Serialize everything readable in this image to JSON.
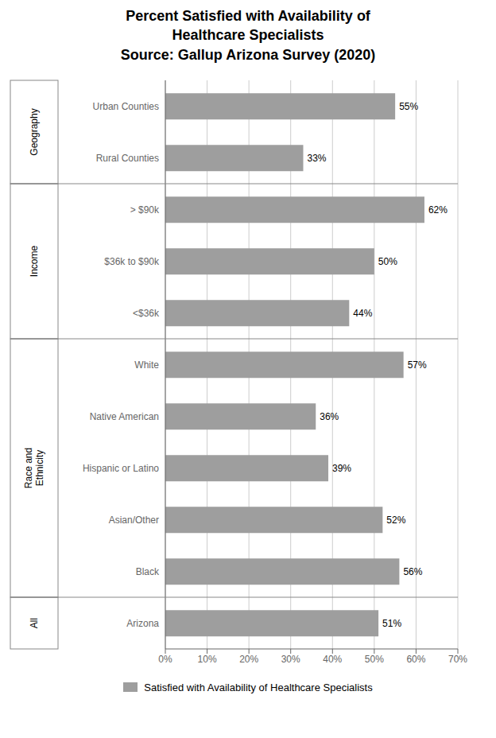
{
  "chart_data": {
    "type": "bar",
    "orientation": "horizontal",
    "title": "Percent Satisfied with Availability of\nHealthcare Specialists\nSource: Gallup Arizona Survey (2020)",
    "categories": [
      "Arizona",
      "Black",
      "Asian/Other",
      "Hispanic or Latino",
      "Native American",
      "White",
      "<$36k",
      "$36k to $90k",
      "> $90k",
      "Rural Counties",
      "Urban Counties"
    ],
    "series": [
      {
        "name": "Satisfied with Availability of Healthcare Specialists",
        "color": "#9e9e9e",
        "values": [
          51,
          56,
          52,
          39,
          36,
          57,
          44,
          50,
          62,
          33,
          55
        ],
        "value_labels": [
          "51%",
          "56%",
          "52%",
          "39%",
          "36%",
          "57%",
          "44%",
          "50%",
          "62%",
          "33%",
          "55%"
        ]
      }
    ],
    "groups": [
      {
        "label": "All",
        "categories": [
          "Arizona"
        ]
      },
      {
        "label": "Race and\nEthnicity",
        "categories": [
          "Black",
          "Asian/Other",
          "Hispanic or Latino",
          "Native American",
          "White"
        ]
      },
      {
        "label": "Income",
        "categories": [
          "<$36k",
          "$36k to $90k",
          "> $90k"
        ]
      },
      {
        "label": "Geography",
        "categories": [
          "Rural Counties",
          "Urban Counties"
        ]
      }
    ],
    "xlim": [
      0,
      70
    ],
    "xticks": [
      {
        "value": 0,
        "label": "0%"
      },
      {
        "value": 10,
        "label": "10%"
      },
      {
        "value": 20,
        "label": "20%"
      },
      {
        "value": 30,
        "label": "30%"
      },
      {
        "value": 40,
        "label": "40%"
      },
      {
        "value": 50,
        "label": "50%"
      },
      {
        "value": 60,
        "label": "60%"
      },
      {
        "value": 70,
        "label": "70%"
      }
    ],
    "grid": true,
    "data_labels": true,
    "legend": "bottom"
  }
}
